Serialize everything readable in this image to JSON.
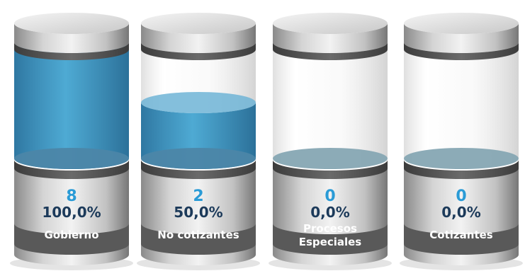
{
  "chart_data": {
    "type": "bar",
    "style": "cylinder-gauges",
    "categories": [
      "Gobierno",
      "No cotizantes",
      "Procesos Especiales",
      "Cotizantes"
    ],
    "label_lines": [
      [
        "Gobierno"
      ],
      [
        "No cotizantes"
      ],
      [
        "Procesos",
        "Especiales"
      ],
      [
        "Cotizantes"
      ]
    ],
    "counts": [
      "8",
      "2",
      "0",
      "0"
    ],
    "percent_labels": [
      "100,0%",
      "50,0%",
      "0,0%",
      "0,0%"
    ],
    "values": [
      100,
      50,
      0,
      0
    ],
    "ylim": [
      0,
      100
    ],
    "colors": {
      "count_text": "#2A9BD6",
      "percent_text": "#1C3A5A",
      "label_band": "#595959",
      "fill_top": "#3A98C4",
      "fill_bottom": "#2477A8"
    }
  }
}
